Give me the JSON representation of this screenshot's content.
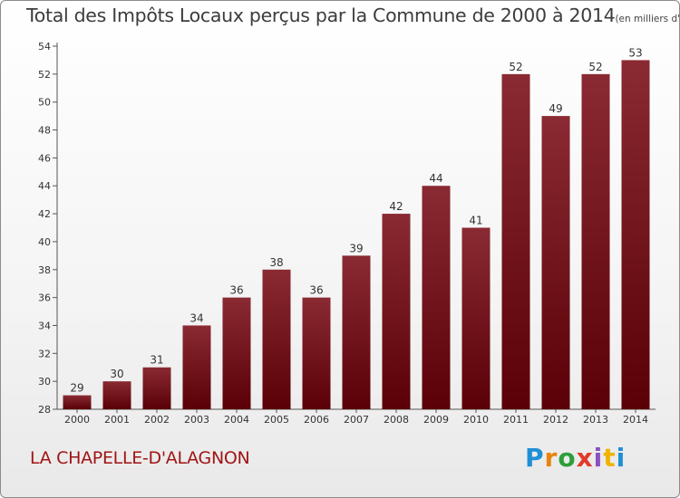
{
  "title": "Total des Impôts Locaux perçus par la Commune de 2000 à 2014",
  "unit_note": "(en milliers d'€)",
  "commune": "LA CHAPELLE-D'ALAGNON",
  "logo": {
    "text": "Proxiti",
    "letters": [
      "P",
      "r",
      "o",
      "x",
      "i",
      "t",
      "i"
    ]
  },
  "colors": {
    "bar_top": "#8a2a33",
    "bar_bottom": "#5a0006",
    "commune_text": "#a01515",
    "axis": "#555555"
  },
  "chart_data": {
    "type": "bar",
    "title": "Total des Impôts Locaux perçus par la Commune de 2000 à 2014",
    "xlabel": "",
    "ylabel": "",
    "categories": [
      "2000",
      "2001",
      "2002",
      "2003",
      "2004",
      "2005",
      "2006",
      "2007",
      "2008",
      "2009",
      "2010",
      "2011",
      "2012",
      "2013",
      "2014"
    ],
    "values": [
      29,
      30,
      31,
      34,
      36,
      38,
      36,
      39,
      42,
      44,
      41,
      52,
      49,
      52,
      53
    ],
    "ylim": [
      28,
      54
    ],
    "yticks": [
      28,
      30,
      32,
      34,
      36,
      38,
      40,
      42,
      44,
      46,
      48,
      50,
      52,
      54
    ],
    "grid": false,
    "data_labels": true
  }
}
